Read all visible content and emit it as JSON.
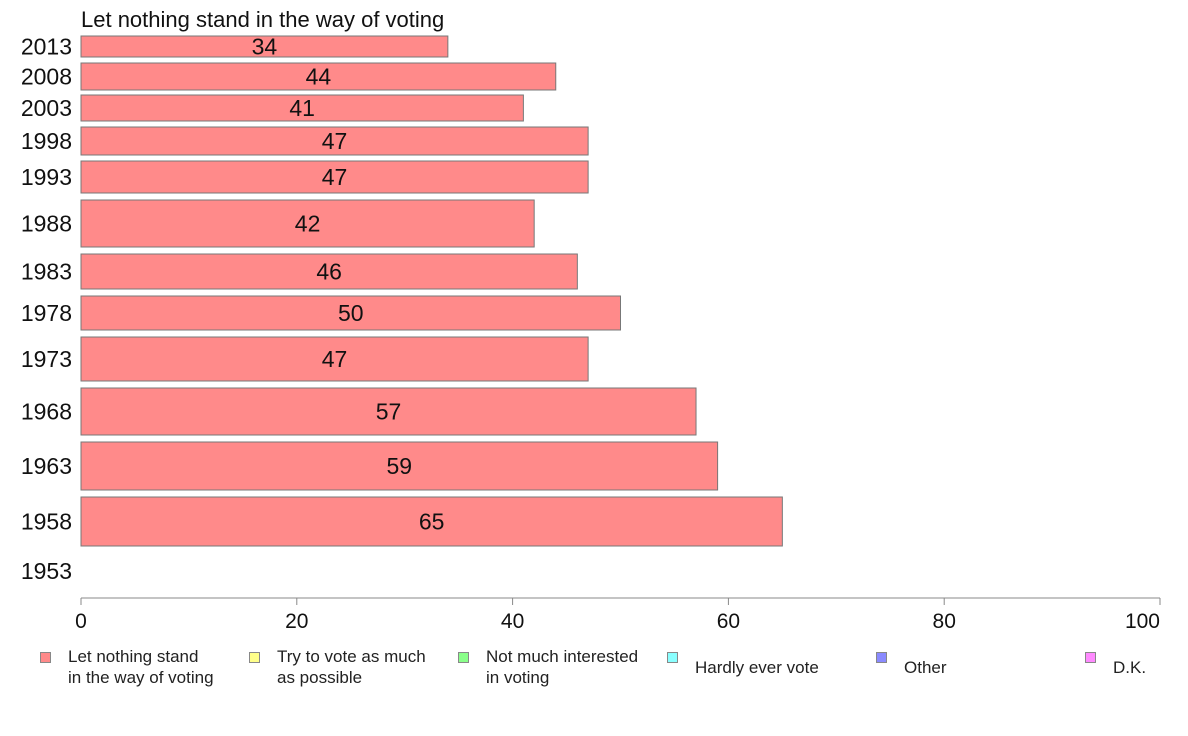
{
  "chart_data": {
    "type": "bar",
    "orientation": "horizontal",
    "title": "Let nothing stand in the way of voting",
    "categories": [
      "2013",
      "2008",
      "2003",
      "1998",
      "1993",
      "1988",
      "1983",
      "1978",
      "1973",
      "1968",
      "1963",
      "1958",
      "1953"
    ],
    "values": [
      34,
      44,
      41,
      47,
      47,
      42,
      46,
      50,
      47,
      57,
      59,
      65,
      null
    ],
    "xlim": [
      0,
      100
    ],
    "xticks": [
      0,
      20,
      40,
      60,
      80,
      100
    ],
    "xlabel": "",
    "ylabel": "",
    "grid": false,
    "legend_position": "bottom",
    "legend": [
      {
        "label": "Let nothing stand\nin the way of voting",
        "color": "#ff8a8a"
      },
      {
        "label": "Try to vote as much\nas possible",
        "color": "#ffff8a"
      },
      {
        "label": "Not much interested\nin voting",
        "color": "#8aff8a"
      },
      {
        "label": "Hardly ever vote",
        "color": "#8affff"
      },
      {
        "label": "Other",
        "color": "#8a8aff"
      },
      {
        "label": "D.K.",
        "color": "#ff8aff"
      }
    ],
    "bar_color": "#ff8a8a",
    "bar_edge_color": "#777777"
  }
}
